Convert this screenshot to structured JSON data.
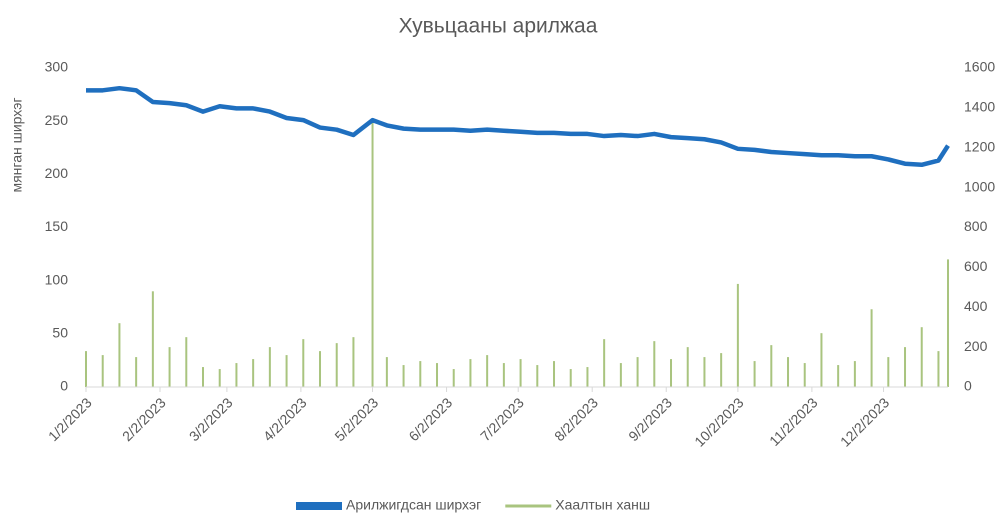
{
  "chart_data": {
    "type": "line-bar",
    "title": "Хувьцааны арилжаа",
    "y_label": "мянган ширхэг",
    "x": [
      "1/2/2023",
      "1/9/2023",
      "1/16/2023",
      "1/23/2023",
      "1/30/2023",
      "2/6/2023",
      "2/13/2023",
      "2/20/2023",
      "2/27/2023",
      "3/6/2023",
      "3/13/2023",
      "3/20/2023",
      "3/27/2023",
      "4/3/2023",
      "4/10/2023",
      "4/17/2023",
      "4/24/2023",
      "5/2/2023",
      "5/8/2023",
      "5/15/2023",
      "5/22/2023",
      "5/29/2023",
      "6/5/2023",
      "6/12/2023",
      "6/19/2023",
      "6/26/2023",
      "7/3/2023",
      "7/10/2023",
      "7/17/2023",
      "7/24/2023",
      "7/31/2023",
      "8/7/2023",
      "8/14/2023",
      "8/21/2023",
      "8/28/2023",
      "9/4/2023",
      "9/11/2023",
      "9/18/2023",
      "9/25/2023",
      "10/2/2023",
      "10/9/2023",
      "10/16/2023",
      "10/23/2023",
      "10/30/2023",
      "11/6/2023",
      "11/13/2023",
      "11/20/2023",
      "11/27/2023",
      "12/4/2023",
      "12/11/2023",
      "12/18/2023",
      "12/25/2023",
      "12/29/2023"
    ],
    "series": [
      {
        "name": "Арилжигдсан ширхэг",
        "color": "#1f6fbf",
        "mark": "line",
        "axis": "y",
        "values": [
          279,
          279,
          281,
          279,
          268,
          267,
          265,
          259,
          264,
          262,
          262,
          259,
          253,
          251,
          244,
          242,
          237,
          251,
          246,
          243,
          242,
          242,
          242,
          241,
          242,
          241,
          240,
          239,
          239,
          238,
          238,
          236,
          237,
          236,
          238,
          235,
          234,
          233,
          230,
          224,
          223,
          221,
          220,
          219,
          218,
          218,
          217,
          217,
          214,
          210,
          209,
          213,
          227
        ]
      },
      {
        "name": "Хаалтын ханш",
        "color": "#a9c47f",
        "mark": "bar",
        "axis": "y2",
        "values": [
          180,
          160,
          320,
          150,
          480,
          200,
          250,
          100,
          90,
          120,
          140,
          200,
          160,
          240,
          180,
          220,
          250,
          1333,
          150,
          110,
          130,
          120,
          90,
          140,
          160,
          120,
          140,
          110,
          130,
          90,
          100,
          240,
          120,
          150,
          230,
          140,
          200,
          150,
          170,
          517,
          130,
          210,
          150,
          120,
          270,
          110,
          130,
          390,
          150,
          200,
          300,
          180,
          640
        ]
      }
    ],
    "xlim": [
      "1/2/2023",
      "12/29/2023"
    ],
    "xticks": [
      "1/2/2023",
      "2/2/2023",
      "3/2/2023",
      "4/2/2023",
      "5/2/2023",
      "6/2/2023",
      "7/2/2023",
      "8/2/2023",
      "9/2/2023",
      "10/2/2023",
      "11/2/2023",
      "12/2/2023"
    ],
    "ylim": [
      0,
      300
    ],
    "yticks": [
      0,
      50,
      100,
      150,
      200,
      250,
      300
    ],
    "y2lim": [
      0,
      1600
    ],
    "y2ticks": [
      0,
      200,
      400,
      600,
      800,
      1000,
      1200,
      1400,
      1600
    ],
    "grid": false,
    "legend": "bottom"
  }
}
